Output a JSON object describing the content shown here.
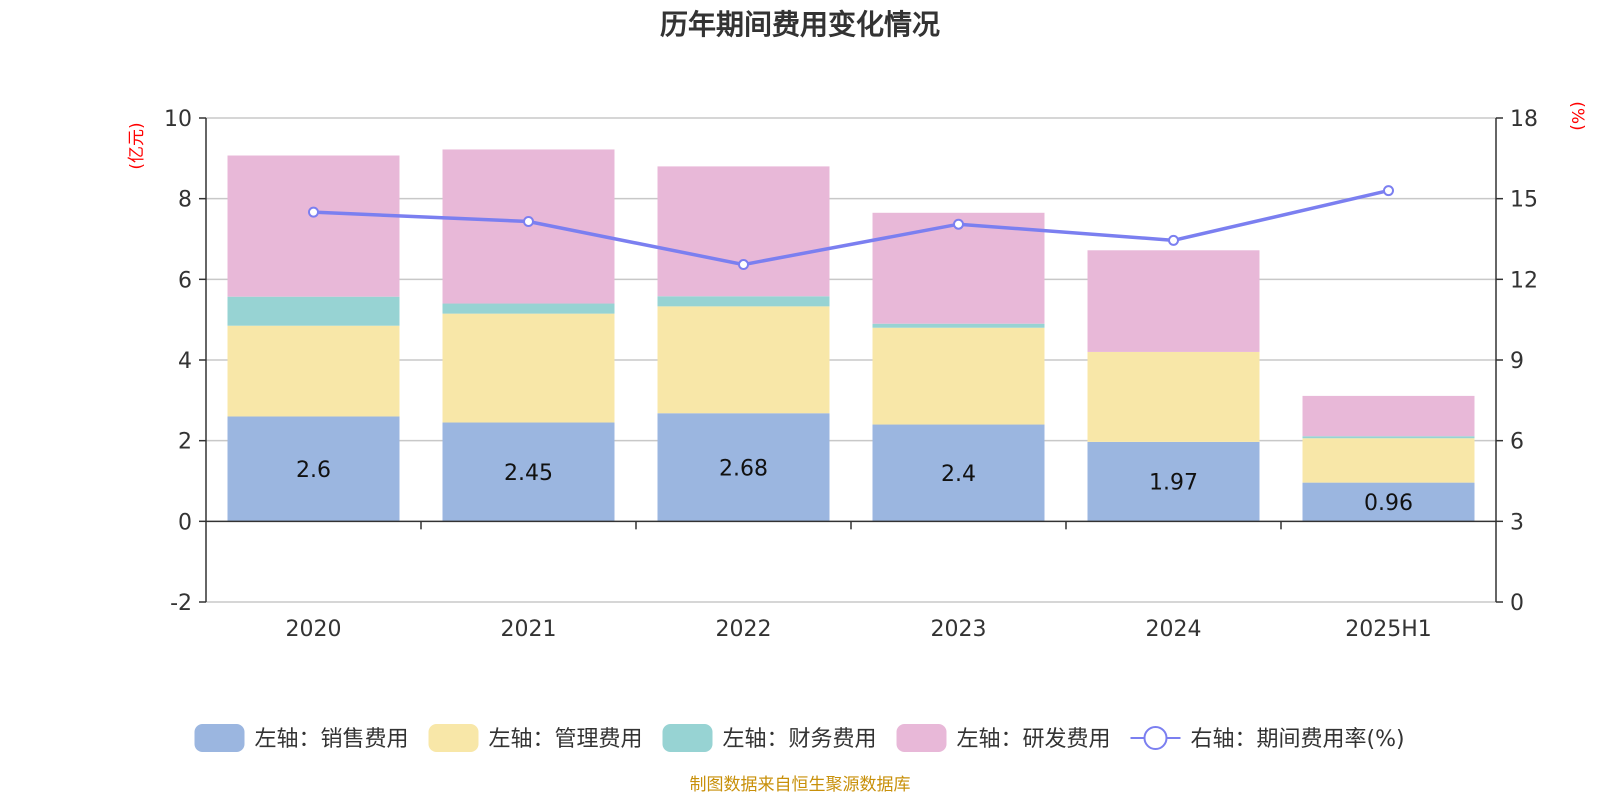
{
  "chart_data": {
    "type": "bar",
    "title": "历年期间费用变化情况",
    "categories": [
      "2020",
      "2021",
      "2022",
      "2023",
      "2024",
      "2025H1"
    ],
    "left_axis": {
      "unit": "(亿元)",
      "ylim": [
        -2,
        10
      ],
      "ticks": [
        "-2",
        "0",
        "2",
        "4",
        "6",
        "8",
        "10"
      ],
      "tick_values": [
        -2,
        0,
        2,
        4,
        6,
        8,
        10
      ]
    },
    "right_axis": {
      "unit": "(%)",
      "ylim": [
        0,
        18
      ],
      "ticks": [
        "0",
        "3",
        "6",
        "9",
        "12",
        "15",
        "18"
      ],
      "tick_values": [
        0,
        3,
        6,
        9,
        12,
        15,
        18
      ]
    },
    "stacked": true,
    "grid": true,
    "legend_position": "bottom",
    "series": [
      {
        "name": "左轴：销售费用",
        "type": "bar",
        "axis": "left",
        "color": "#9bb6e0",
        "values": [
          2.6,
          2.45,
          2.68,
          2.4,
          1.97,
          0.96
        ],
        "labels": [
          "2.6",
          "2.45",
          "2.68",
          "2.4",
          "1.97",
          "0.96"
        ]
      },
      {
        "name": "左轴：管理费用",
        "type": "bar",
        "axis": "left",
        "color": "#f8e7a8",
        "values": [
          2.25,
          2.7,
          2.65,
          2.4,
          2.23,
          1.1
        ]
      },
      {
        "name": "左轴：财务费用",
        "type": "bar",
        "axis": "left",
        "color": "#97d3d3",
        "values": [
          0.72,
          0.25,
          0.25,
          0.1,
          0.0,
          0.05
        ]
      },
      {
        "name": "左轴：研发费用",
        "type": "bar",
        "axis": "left",
        "color": "#e8b8d8",
        "values": [
          3.5,
          3.82,
          3.22,
          2.75,
          2.52,
          1.0
        ]
      },
      {
        "name": "右轴：期间费用率(%)",
        "type": "line",
        "axis": "right",
        "color": "#7b7ff0",
        "values": [
          14.5,
          14.15,
          12.55,
          14.05,
          13.45,
          15.3
        ]
      }
    ],
    "source": "制图数据来自恒生聚源数据库"
  }
}
